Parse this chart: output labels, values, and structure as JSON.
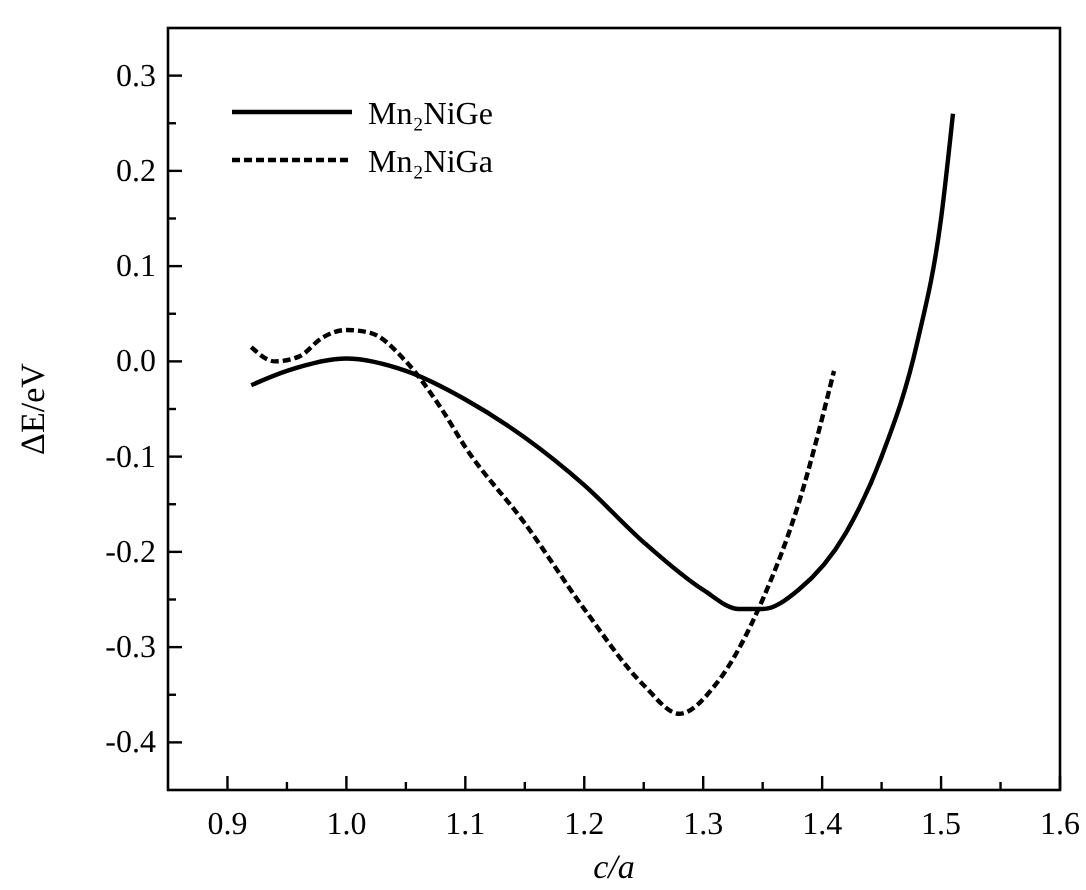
{
  "chart_data": {
    "type": "line",
    "xlabel": "c/a",
    "ylabel": "ΔE/eV",
    "xlim": [
      0.85,
      1.6
    ],
    "ylim": [
      -0.45,
      0.35
    ],
    "xticks": [
      0.9,
      {
        "value": 0.95,
        "label": null
      },
      {
        "value": 1,
        "label": "1.0"
      },
      {
        "value": 1.05,
        "label": null
      },
      1.1,
      {
        "value": 1.15,
        "label": null
      },
      1.2,
      {
        "value": 1.25,
        "label": null
      },
      1.3,
      {
        "value": 1.35,
        "label": null
      },
      1.4,
      {
        "value": 1.45,
        "label": null
      },
      1.5,
      {
        "value": 1.55,
        "label": null
      },
      1.6
    ],
    "yticks": [
      -0.4,
      {
        "value": -0.35,
        "label": null
      },
      -0.3,
      {
        "value": -0.25,
        "label": null
      },
      -0.2,
      {
        "value": -0.15,
        "label": null
      },
      -0.1,
      {
        "value": -0.05,
        "label": null
      },
      {
        "value": 0,
        "label": "0.0"
      },
      {
        "value": 0.05,
        "label": null
      },
      0.1,
      {
        "value": 0.15,
        "label": null
      },
      0.2,
      {
        "value": 0.25,
        "label": null
      },
      0.3
    ],
    "legend": "top left",
    "grid": false,
    "series": [
      {
        "name": "Mn₂NiGe",
        "color": "#000000",
        "line_style": "solid",
        "x": [
          0.92,
          0.95,
          1.0,
          1.05,
          1.1,
          1.15,
          1.2,
          1.25,
          1.3,
          1.33,
          1.35,
          1.38,
          1.42,
          1.45,
          1.48,
          1.5,
          1.51
        ],
        "values": [
          -0.025,
          -0.01,
          0.003,
          -0.01,
          -0.04,
          -0.08,
          -0.13,
          -0.19,
          -0.24,
          -0.26,
          -0.26,
          -0.24,
          -0.18,
          -0.1,
          0.02,
          0.15,
          0.26
        ]
      },
      {
        "name": "Mn₂NiGa",
        "color": "#000000",
        "line_style": "dashed",
        "x": [
          0.92,
          0.94,
          0.96,
          0.98,
          1.0,
          1.02,
          1.05,
          1.08,
          1.1,
          1.15,
          1.2,
          1.25,
          1.28,
          1.31,
          1.35,
          1.38,
          1.41
        ],
        "values": [
          0.015,
          0.0,
          0.005,
          0.025,
          0.033,
          0.03,
          0.0,
          -0.05,
          -0.09,
          -0.17,
          -0.26,
          -0.34,
          -0.37,
          -0.34,
          -0.25,
          -0.15,
          -0.01
        ]
      }
    ]
  }
}
